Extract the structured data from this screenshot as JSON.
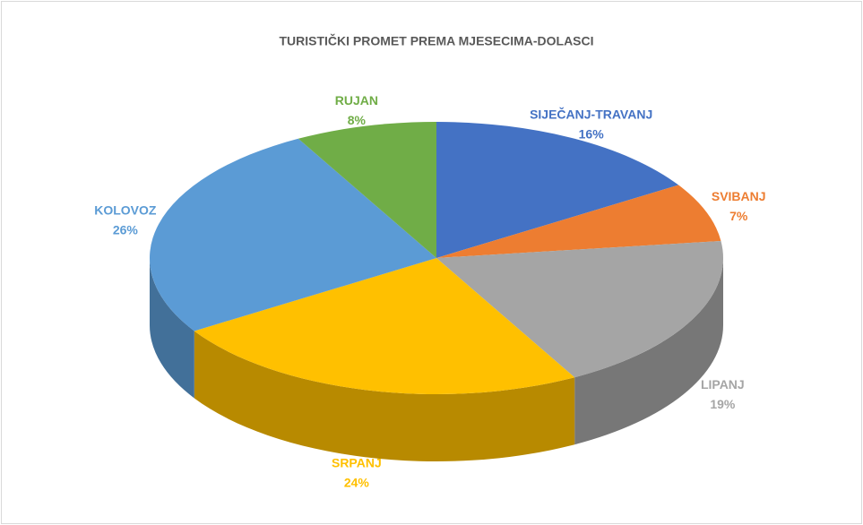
{
  "chart_data": {
    "type": "pie",
    "title": "TURISTIČKI PROMET PREMA MJESECIMA-DOLASCI",
    "categories": [
      "SIJEČANJ-TRAVANJ",
      "SVIBANJ",
      "LIPANJ",
      "SRPANJ",
      "KOLOVOZ",
      "RUJAN"
    ],
    "values": [
      16,
      7,
      19,
      24,
      26,
      8
    ],
    "value_labels": [
      "16%",
      "7%",
      "19%",
      "24%",
      "26%",
      "8%"
    ],
    "colors": [
      "#4472c4",
      "#ed7d31",
      "#a5a5a5",
      "#ffc000",
      "#5b9bd5",
      "#70ad47"
    ]
  }
}
